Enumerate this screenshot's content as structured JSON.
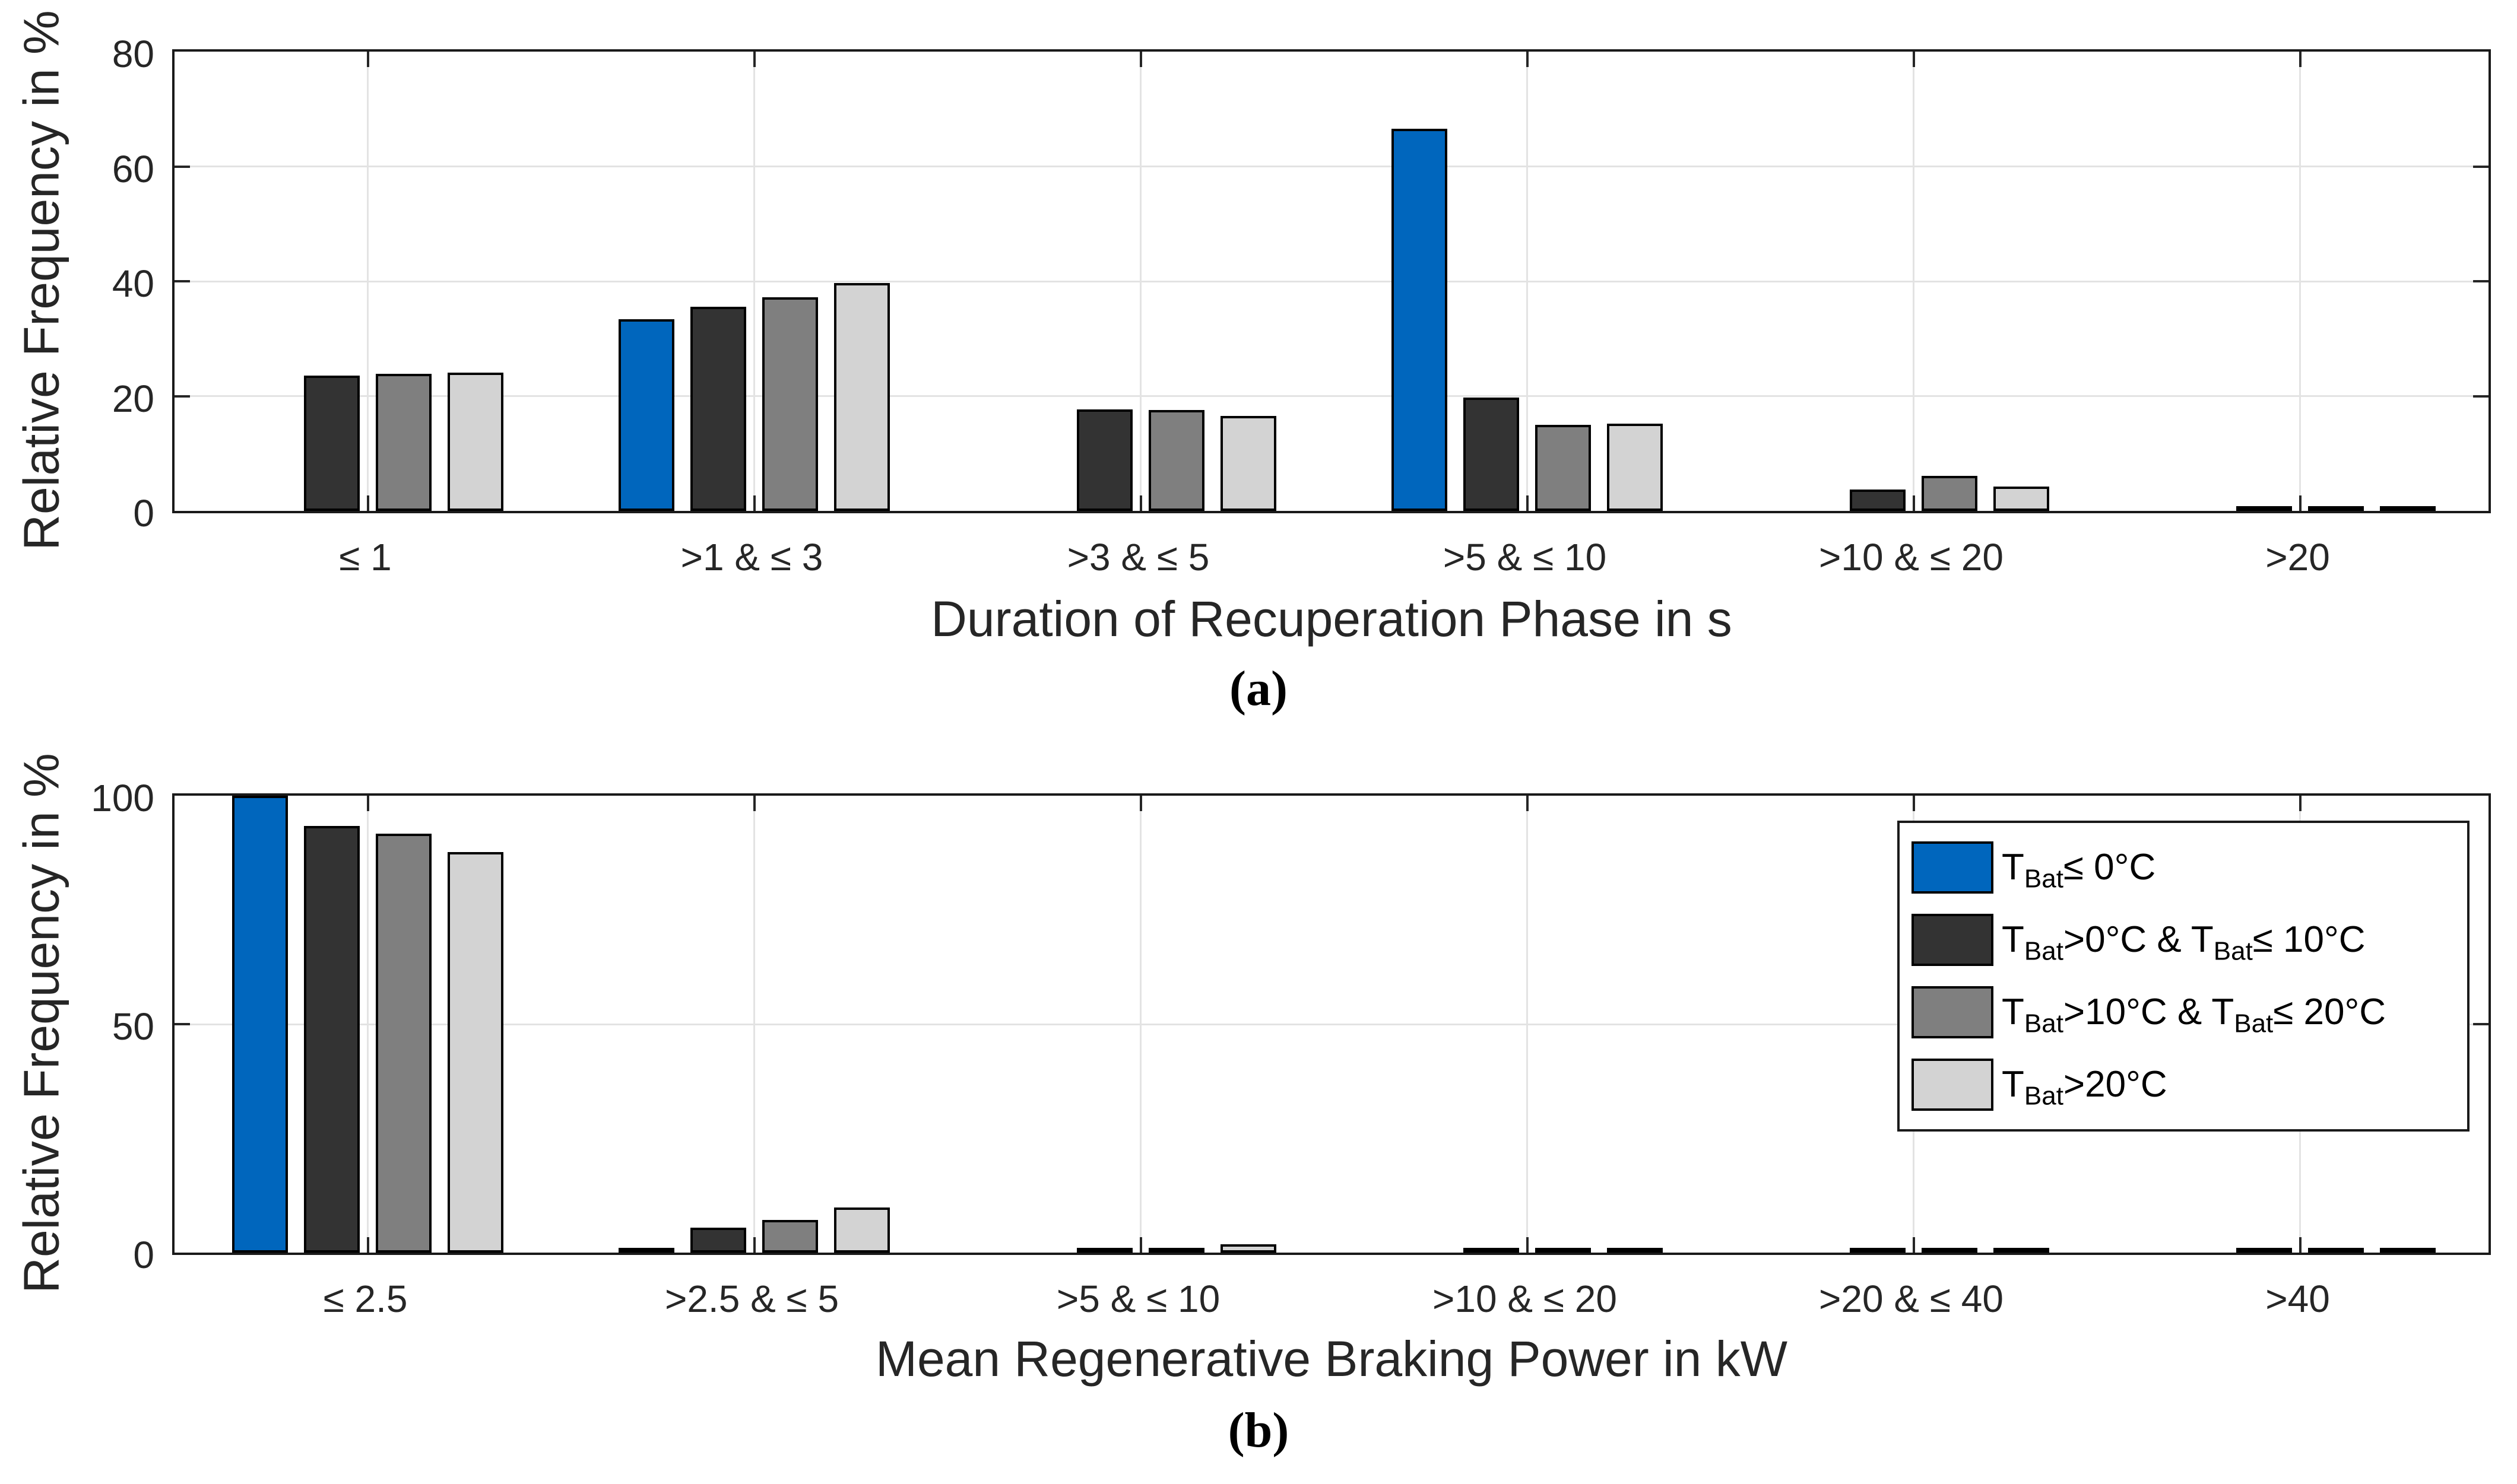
{
  "figure": {
    "panel_a": {
      "ylabel": "Relative Frequency in %",
      "xlabel": "Duration of Recuperation Phase in s",
      "caption": "(a)"
    },
    "panel_b": {
      "ylabel": "Relative Frequency in %",
      "xlabel": "Mean Regenerative Braking Power in kW",
      "caption": "(b)"
    }
  },
  "legend": {
    "entries": [
      {
        "label": "T_{Bat}≤ 0°C",
        "color": "#0066BD"
      },
      {
        "label": "T_{Bat}>0°C & T_{Bat}≤ 10°C",
        "color": "#333333"
      },
      {
        "label": "T_{Bat}>10°C & T_{Bat}≤ 20°C",
        "color": "#7F7F7F"
      },
      {
        "label": "T_{Bat}>20°C",
        "color": "#D3D3D3"
      }
    ]
  },
  "chart_data": [
    {
      "type": "bar",
      "title": "",
      "xlabel": "Duration of Recuperation Phase in s",
      "ylabel": "Relative Frequency in %",
      "ylim": [
        0,
        80
      ],
      "yticks": [
        0,
        20,
        40,
        60,
        80
      ],
      "grid": true,
      "legend_position": "none",
      "categories": [
        "≤ 1",
        ">1 & ≤ 3",
        ">3 & ≤ 5",
        ">5 & ≤ 10",
        ">10 & ≤ 20",
        ">20"
      ],
      "series": [
        {
          "name": "TBat ≤ 0°C",
          "color": "#0066BD",
          "values": [
            0,
            33.4,
            0,
            66.6,
            0,
            0
          ]
        },
        {
          "name": "TBat >0°C & ≤ 10°C",
          "color": "#333333",
          "values": [
            23.6,
            35.6,
            17.7,
            19.7,
            3.7,
            0.2
          ]
        },
        {
          "name": "TBat >10°C & ≤ 20°C",
          "color": "#7F7F7F",
          "values": [
            23.9,
            37.2,
            17.6,
            15.0,
            6.1,
            0.4
          ]
        },
        {
          "name": "TBat >20°C",
          "color": "#D3D3D3",
          "values": [
            24.1,
            39.7,
            16.5,
            15.2,
            4.2,
            0.3
          ]
        }
      ]
    },
    {
      "type": "bar",
      "title": "",
      "xlabel": "Mean Regenerative Braking Power in kW",
      "ylabel": "Relative Frequency in %",
      "ylim": [
        0,
        100
      ],
      "yticks": [
        0,
        50,
        100
      ],
      "grid": true,
      "legend_position": "top-right",
      "categories": [
        "≤ 2.5",
        ">2.5 & ≤ 5",
        ">5 & ≤ 10",
        ">10 & ≤ 20",
        ">20 & ≤ 40",
        ">40"
      ],
      "series": [
        {
          "name": "TBat ≤ 0°C",
          "color": "#0066BD",
          "values": [
            100,
            0.2,
            0,
            0,
            0,
            0
          ]
        },
        {
          "name": "TBat >0°C & ≤ 10°C",
          "color": "#333333",
          "values": [
            93.4,
            5.5,
            0.9,
            0.3,
            0.15,
            0.05
          ]
        },
        {
          "name": "TBat >10°C & ≤ 20°C",
          "color": "#7F7F7F",
          "values": [
            91.7,
            7.2,
            0.8,
            0.2,
            0.1,
            0.05
          ]
        },
        {
          "name": "TBat >20°C",
          "color": "#D3D3D3",
          "values": [
            87.6,
            9.9,
            1.8,
            0.4,
            0.2,
            0.1
          ]
        }
      ]
    }
  ]
}
